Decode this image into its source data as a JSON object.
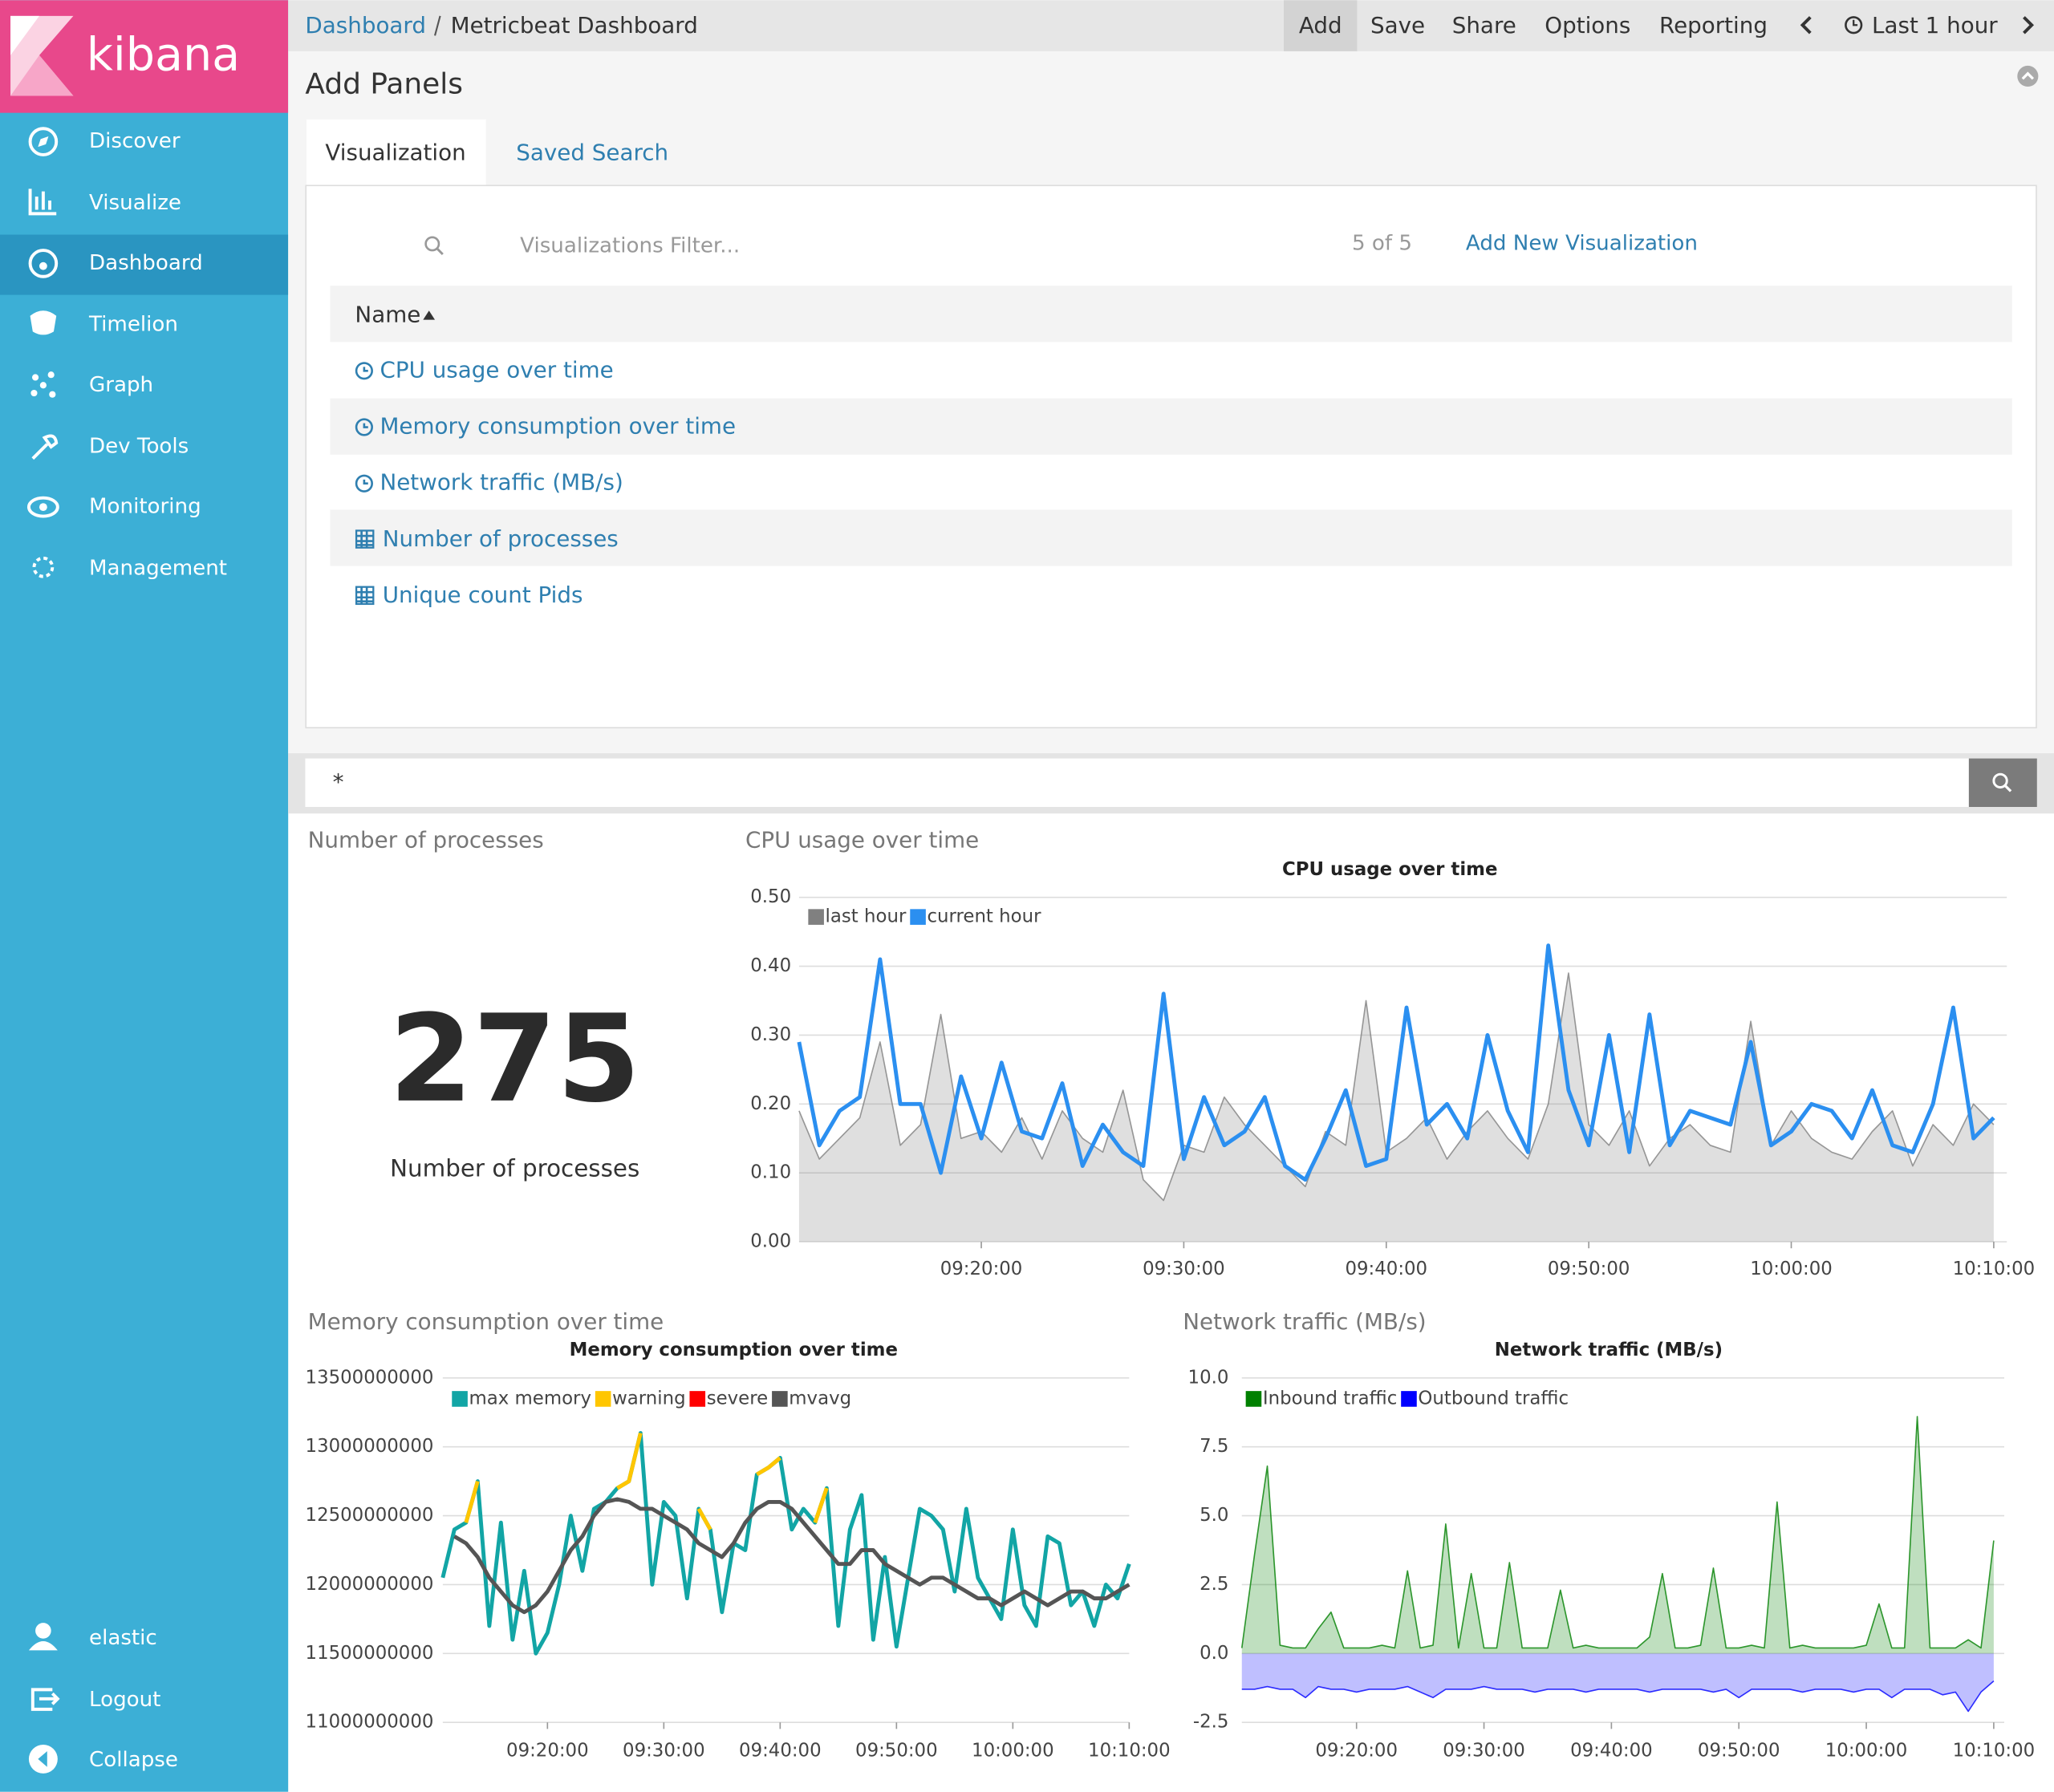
{
  "brand": "kibana",
  "nav": [
    "Discover",
    "Visualize",
    "Dashboard",
    "Timelion",
    "Graph",
    "Dev Tools",
    "Monitoring",
    "Management"
  ],
  "nav_bottom": [
    "elastic",
    "Logout",
    "Collapse"
  ],
  "breadcrumb": [
    "Dashboard",
    "Metricbeat Dashboard"
  ],
  "menu": [
    "Add",
    "Save",
    "Share",
    "Options",
    "Reporting"
  ],
  "time_range": "Last 1 hour",
  "add_panels": {
    "title": "Add Panels",
    "tabs": [
      "Visualization",
      "Saved Search"
    ],
    "filter_placeholder": "Visualizations Filter...",
    "count": "5 of 5",
    "add_new": "Add New Visualization",
    "column": "Name",
    "items": [
      {
        "name": "CPU usage over time",
        "icon": "line"
      },
      {
        "name": "Memory consumption over time",
        "icon": "line"
      },
      {
        "name": "Network traffic (MB/s)",
        "icon": "line"
      },
      {
        "name": "Number of processes",
        "icon": "table"
      },
      {
        "name": "Unique count Pids",
        "icon": "table"
      }
    ]
  },
  "query": "*",
  "panel_titles": [
    "Number of processes",
    "CPU usage over time",
    "Memory consumption over time",
    "Network traffic (MB/s)"
  ],
  "chart_data": [
    {
      "type": "metric",
      "value": 275,
      "label": "Number of processes"
    },
    {
      "type": "line",
      "title": "CPU usage over time",
      "x": [
        "09:11:00",
        "09:12:00",
        "09:13:00",
        "09:14:00",
        "09:15:00",
        "09:16:00",
        "09:17:00",
        "09:18:00",
        "09:19:00",
        "09:20:00",
        "09:21:00",
        "09:22:00",
        "09:23:00",
        "09:24:00",
        "09:25:00",
        "09:26:00",
        "09:27:00",
        "09:28:00",
        "09:29:00",
        "09:30:00",
        "09:31:00",
        "09:32:00",
        "09:33:00",
        "09:34:00",
        "09:35:00",
        "09:36:00",
        "09:37:00",
        "09:38:00",
        "09:39:00",
        "09:40:00",
        "09:41:00",
        "09:42:00",
        "09:43:00",
        "09:44:00",
        "09:45:00",
        "09:46:00",
        "09:47:00",
        "09:48:00",
        "09:49:00",
        "09:50:00",
        "09:51:00",
        "09:52:00",
        "09:53:00",
        "09:54:00",
        "09:55:00",
        "09:56:00",
        "09:57:00",
        "09:58:00",
        "09:59:00",
        "10:00:00",
        "10:01:00",
        "10:02:00",
        "10:03:00",
        "10:04:00",
        "10:05:00",
        "10:06:00",
        "10:07:00",
        "10:08:00",
        "10:09:00",
        "10:10:00"
      ],
      "xlim": [
        "09:11:00",
        "10:10:00"
      ],
      "xticks": [
        "09:20:00",
        "09:30:00",
        "09:40:00",
        "09:50:00",
        "10:00:00",
        "10:10:00"
      ],
      "ylim": [
        0,
        0.5
      ],
      "yticks": [
        {
          "value": 0,
          "label": "0.00"
        },
        {
          "value": 0.1,
          "label": "0.10"
        },
        {
          "value": 0.2,
          "label": "0.20"
        },
        {
          "value": 0.3,
          "label": "0.30"
        },
        {
          "value": 0.4,
          "label": "0.40"
        },
        {
          "value": 0.5,
          "label": "0.50"
        }
      ],
      "grid": true,
      "series": [
        {
          "name": "last hour",
          "color": "#808080",
          "fill": true,
          "values": [
            0.19,
            0.12,
            0.15,
            0.18,
            0.29,
            0.14,
            0.17,
            0.33,
            0.15,
            0.16,
            0.13,
            0.18,
            0.12,
            0.19,
            0.15,
            0.13,
            0.22,
            0.09,
            0.06,
            0.14,
            0.13,
            0.21,
            0.17,
            0.14,
            0.11,
            0.08,
            0.16,
            0.14,
            0.35,
            0.13,
            0.15,
            0.18,
            0.12,
            0.16,
            0.19,
            0.15,
            0.12,
            0.2,
            0.39,
            0.17,
            0.14,
            0.19,
            0.11,
            0.15,
            0.17,
            0.14,
            0.13,
            0.32,
            0.14,
            0.19,
            0.15,
            0.13,
            0.12,
            0.16,
            0.19,
            0.11,
            0.17,
            0.14,
            0.2,
            0.17
          ]
        },
        {
          "name": "current hour",
          "color": "#2b8ff0",
          "fill": false,
          "values": [
            0.29,
            0.14,
            0.19,
            0.21,
            0.41,
            0.2,
            0.2,
            0.1,
            0.24,
            0.15,
            0.26,
            0.16,
            0.15,
            0.23,
            0.11,
            0.17,
            0.13,
            0.11,
            0.36,
            0.12,
            0.21,
            0.14,
            0.16,
            0.21,
            0.11,
            0.09,
            0.15,
            0.22,
            0.11,
            0.12,
            0.34,
            0.17,
            0.2,
            0.15,
            0.3,
            0.19,
            0.13,
            0.43,
            0.22,
            0.14,
            0.3,
            0.13,
            0.33,
            0.14,
            0.19,
            0.18,
            0.17,
            0.29,
            0.14,
            0.16,
            0.2,
            0.19,
            0.15,
            0.22,
            0.14,
            0.13,
            0.2,
            0.34,
            0.15,
            0.18
          ]
        }
      ]
    },
    {
      "type": "line",
      "title": "Memory consumption over time",
      "x": [
        "09:11:00",
        "09:12:00",
        "09:13:00",
        "09:14:00",
        "09:15:00",
        "09:16:00",
        "09:17:00",
        "09:18:00",
        "09:19:00",
        "09:20:00",
        "09:21:00",
        "09:22:00",
        "09:23:00",
        "09:24:00",
        "09:25:00",
        "09:26:00",
        "09:27:00",
        "09:28:00",
        "09:29:00",
        "09:30:00",
        "09:31:00",
        "09:32:00",
        "09:33:00",
        "09:34:00",
        "09:35:00",
        "09:36:00",
        "09:37:00",
        "09:38:00",
        "09:39:00",
        "09:40:00",
        "09:41:00",
        "09:42:00",
        "09:43:00",
        "09:44:00",
        "09:45:00",
        "09:46:00",
        "09:47:00",
        "09:48:00",
        "09:49:00",
        "09:50:00",
        "09:51:00",
        "09:52:00",
        "09:53:00",
        "09:54:00",
        "09:55:00",
        "09:56:00",
        "09:57:00",
        "09:58:00",
        "09:59:00",
        "10:00:00",
        "10:01:00",
        "10:02:00",
        "10:03:00",
        "10:04:00",
        "10:05:00",
        "10:06:00",
        "10:07:00",
        "10:08:00",
        "10:09:00",
        "10:10:00"
      ],
      "xlim": [
        "09:11:00",
        "10:10:00"
      ],
      "xticks": [
        "09:20:00",
        "09:30:00",
        "09:40:00",
        "09:50:00",
        "10:00:00",
        "10:10:00"
      ],
      "ylim": [
        11000000000,
        13500000000
      ],
      "yticks": [
        11000000000,
        11500000000,
        12000000000,
        12500000000,
        13000000000,
        13500000000
      ],
      "grid": true,
      "series": [
        {
          "name": "max memory",
          "color": "#12a5a5",
          "fill": false,
          "values": [
            12050000000,
            12400000000,
            12450000000,
            12750000000,
            11700000000,
            12450000000,
            11600000000,
            12100000000,
            11500000000,
            11650000000,
            12000000000,
            12500000000,
            12100000000,
            12550000000,
            12600000000,
            12700000000,
            12750000000,
            13100000000,
            12000000000,
            12600000000,
            12500000000,
            11900000000,
            12550000000,
            12400000000,
            11800000000,
            12300000000,
            12250000000,
            12800000000,
            12850000000,
            12920000000,
            12400000000,
            12550000000,
            12450000000,
            12700000000,
            11700000000,
            12400000000,
            12650000000,
            11600000000,
            12200000000,
            11550000000,
            12050000000,
            12550000000,
            12500000000,
            12400000000,
            11950000000,
            12550000000,
            12050000000,
            11900000000,
            11750000000,
            12400000000,
            11850000000,
            11700000000,
            12350000000,
            12300000000,
            11850000000,
            11950000000,
            11700000000,
            12000000000,
            11900000000,
            12150000000
          ]
        },
        {
          "name": "warning",
          "color": "#ffc600",
          "fill": false,
          "values": [
            null,
            null,
            12450000000,
            12750000000,
            null,
            null,
            null,
            null,
            null,
            null,
            null,
            null,
            null,
            null,
            null,
            12700000000,
            12750000000,
            13100000000,
            null,
            null,
            null,
            null,
            12550000000,
            12400000000,
            null,
            null,
            null,
            12800000000,
            12850000000,
            12920000000,
            null,
            null,
            12450000000,
            12700000000,
            null,
            null,
            null,
            null,
            null,
            null,
            null,
            null,
            null,
            null,
            null,
            null,
            null,
            null,
            null,
            null,
            null,
            null,
            null,
            null,
            null,
            null,
            null,
            null,
            null,
            null
          ]
        },
        {
          "name": "severe",
          "color": "#ff0000",
          "fill": false,
          "values": [
            null,
            null,
            null,
            null,
            null,
            null,
            null,
            null,
            null,
            null,
            null,
            null,
            null,
            null,
            null,
            null,
            null,
            null,
            null,
            null,
            null,
            null,
            null,
            null,
            null,
            null,
            null,
            null,
            null,
            null,
            null,
            null,
            null,
            null,
            null,
            null,
            null,
            null,
            null,
            null,
            null,
            null,
            null,
            null,
            null,
            null,
            null,
            null,
            null,
            null,
            null,
            null,
            null,
            null,
            null,
            null,
            null,
            null,
            null,
            null
          ]
        },
        {
          "name": "mvavg",
          "color": "#555555",
          "fill": false,
          "values": [
            null,
            12350000000,
            12300000000,
            12200000000,
            12050000000,
            11950000000,
            11850000000,
            11800000000,
            11850000000,
            11950000000,
            12100000000,
            12250000000,
            12350000000,
            12500000000,
            12600000000,
            12620000000,
            12600000000,
            12550000000,
            12550000000,
            12500000000,
            12450000000,
            12400000000,
            12300000000,
            12250000000,
            12200000000,
            12300000000,
            12450000000,
            12550000000,
            12600000000,
            12600000000,
            12550000000,
            12450000000,
            12350000000,
            12250000000,
            12150000000,
            12150000000,
            12250000000,
            12250000000,
            12150000000,
            12100000000,
            12050000000,
            12000000000,
            12050000000,
            12050000000,
            12000000000,
            11950000000,
            11900000000,
            11900000000,
            11850000000,
            11900000000,
            11950000000,
            11900000000,
            11850000000,
            11900000000,
            11950000000,
            11950000000,
            11900000000,
            11900000000,
            11950000000,
            12000000000
          ]
        }
      ]
    },
    {
      "type": "line",
      "title": "Network traffic (MB/s)",
      "x": [
        "09:11:00",
        "09:12:00",
        "09:13:00",
        "09:14:00",
        "09:15:00",
        "09:16:00",
        "09:17:00",
        "09:18:00",
        "09:19:00",
        "09:20:00",
        "09:21:00",
        "09:22:00",
        "09:23:00",
        "09:24:00",
        "09:25:00",
        "09:26:00",
        "09:27:00",
        "09:28:00",
        "09:29:00",
        "09:30:00",
        "09:31:00",
        "09:32:00",
        "09:33:00",
        "09:34:00",
        "09:35:00",
        "09:36:00",
        "09:37:00",
        "09:38:00",
        "09:39:00",
        "09:40:00",
        "09:41:00",
        "09:42:00",
        "09:43:00",
        "09:44:00",
        "09:45:00",
        "09:46:00",
        "09:47:00",
        "09:48:00",
        "09:49:00",
        "09:50:00",
        "09:51:00",
        "09:52:00",
        "09:53:00",
        "09:54:00",
        "09:55:00",
        "09:56:00",
        "09:57:00",
        "09:58:00",
        "09:59:00",
        "10:00:00",
        "10:01:00",
        "10:02:00",
        "10:03:00",
        "10:04:00",
        "10:05:00",
        "10:06:00",
        "10:07:00",
        "10:08:00",
        "10:09:00",
        "10:10:00"
      ],
      "xlim": [
        "09:11:00",
        "10:10:00"
      ],
      "xticks": [
        "09:20:00",
        "09:30:00",
        "09:40:00",
        "09:50:00",
        "10:00:00",
        "10:10:00"
      ],
      "ylim": [
        -2.5,
        10
      ],
      "yticks": [
        {
          "value": -2.5,
          "label": "-2.5"
        },
        {
          "value": 0,
          "label": "0.0"
        },
        {
          "value": 2.5,
          "label": "2.5"
        },
        {
          "value": 5,
          "label": "5.0"
        },
        {
          "value": 7.5,
          "label": "7.5"
        },
        {
          "value": 10,
          "label": "10.0"
        }
      ],
      "grid": true,
      "series": [
        {
          "name": "Inbound traffic",
          "color": "#008000",
          "fill": true,
          "values": [
            0.2,
            3.6,
            6.8,
            0.3,
            0.2,
            0.2,
            0.9,
            1.5,
            0.2,
            0.2,
            0.2,
            0.3,
            0.2,
            3.0,
            0.2,
            0.3,
            4.7,
            0.2,
            2.9,
            0.2,
            0.2,
            3.3,
            0.2,
            0.2,
            0.2,
            2.3,
            0.2,
            0.3,
            0.2,
            0.2,
            0.2,
            0.2,
            0.6,
            2.9,
            0.2,
            0.2,
            0.3,
            3.1,
            0.2,
            0.2,
            0.3,
            0.2,
            5.5,
            0.2,
            0.3,
            0.2,
            0.2,
            0.2,
            0.2,
            0.3,
            1.8,
            0.2,
            0.2,
            8.6,
            0.2,
            0.2,
            0.2,
            0.5,
            0.2,
            4.1
          ]
        },
        {
          "name": "Outbound traffic",
          "color": "#0000ff",
          "fill": true,
          "values": [
            -1.3,
            -1.3,
            -1.2,
            -1.3,
            -1.3,
            -1.6,
            -1.2,
            -1.3,
            -1.3,
            -1.4,
            -1.3,
            -1.3,
            -1.3,
            -1.2,
            -1.4,
            -1.6,
            -1.3,
            -1.3,
            -1.3,
            -1.2,
            -1.3,
            -1.3,
            -1.3,
            -1.4,
            -1.3,
            -1.3,
            -1.3,
            -1.4,
            -1.3,
            -1.3,
            -1.3,
            -1.3,
            -1.4,
            -1.3,
            -1.3,
            -1.3,
            -1.3,
            -1.4,
            -1.3,
            -1.6,
            -1.3,
            -1.3,
            -1.3,
            -1.3,
            -1.4,
            -1.3,
            -1.3,
            -1.3,
            -1.4,
            -1.3,
            -1.3,
            -1.6,
            -1.3,
            -1.3,
            -1.3,
            -1.5,
            -1.4,
            -2.1,
            -1.4,
            -1.0
          ]
        }
      ]
    }
  ]
}
